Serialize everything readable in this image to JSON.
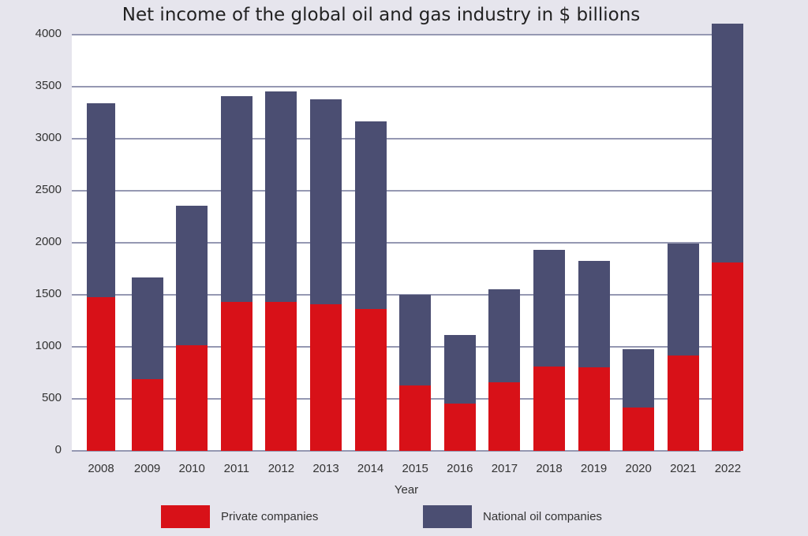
{
  "chart_data": {
    "type": "bar",
    "stacked": true,
    "title": "Net income of the global oil and gas industry in $ billions",
    "xlabel": "Year",
    "ylabel": "",
    "ylim": [
      0,
      4000
    ],
    "yticks": [
      0,
      500,
      1000,
      1500,
      2000,
      2500,
      3000,
      3500,
      4000
    ],
    "grid": true,
    "legend_position": "bottom",
    "categories": [
      "2008",
      "2009",
      "2010",
      "2011",
      "2012",
      "2013",
      "2014",
      "2015",
      "2016",
      "2017",
      "2018",
      "2019",
      "2020",
      "2021",
      "2022"
    ],
    "series": [
      {
        "name": "Private companies",
        "color": "#d81118",
        "values": [
          1477,
          689,
          1015,
          1432,
          1432,
          1409,
          1364,
          629,
          455,
          659,
          811,
          803,
          417,
          917,
          1811
        ]
      },
      {
        "name": "National oil companies",
        "color": "#4b4e72",
        "values": [
          1864,
          978,
          1341,
          1977,
          2023,
          1970,
          1803,
          871,
          659,
          894,
          1121,
          1023,
          560,
          1075,
          2295
        ]
      }
    ],
    "totals": [
      3341,
      1667,
      2356,
      3409,
      3455,
      3379,
      3167,
      1500,
      1114,
      1553,
      1932,
      1826,
      977,
      1992,
      4106
    ]
  },
  "ui": {
    "title": "Net income of the global oil and gas industry in $ billions",
    "xlabel": "Year",
    "legend": [
      {
        "label": "Private companies",
        "color": "#d81118"
      },
      {
        "label": "National oil companies",
        "color": "#4b4e72"
      }
    ]
  }
}
